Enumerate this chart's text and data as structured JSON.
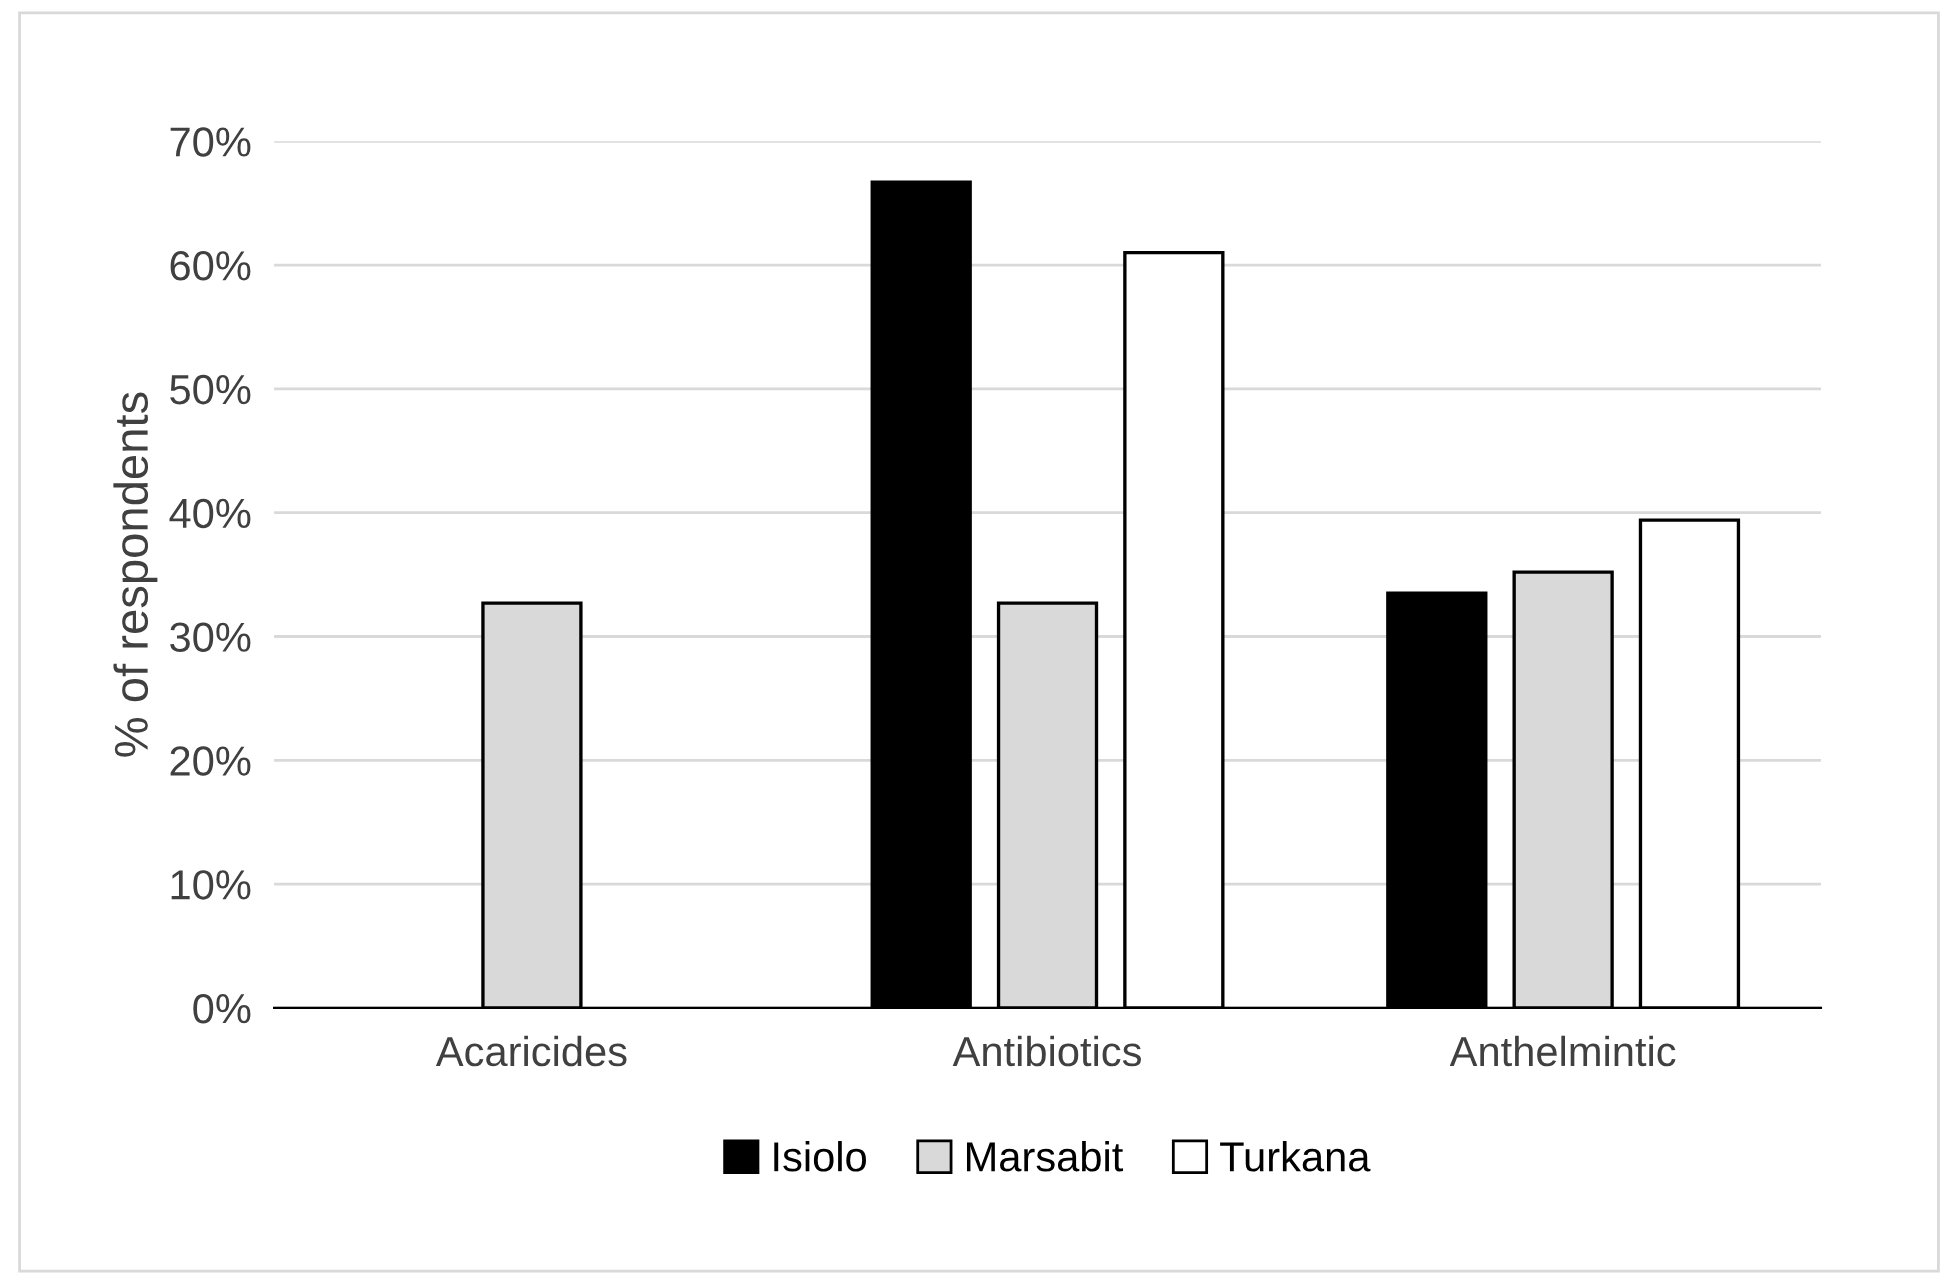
{
  "chart_data": {
    "type": "bar",
    "ylabel": "% of respondents",
    "categories": [
      "Acaricides",
      "Antibiotics",
      "Anthelmintic"
    ],
    "series": [
      {
        "name": "Isiolo",
        "color": "#000000",
        "values": [
          0,
          66.7,
          33.5
        ]
      },
      {
        "name": "Marsabit",
        "color": "#d9d9d9",
        "values": [
          32.7,
          32.7,
          35.2
        ]
      },
      {
        "name": "Turkana",
        "color": "#ffffff",
        "values": [
          0,
          61,
          39.4
        ]
      }
    ],
    "ylim": [
      0,
      70
    ],
    "yticks": [
      {
        "value": 0,
        "label": "0%"
      },
      {
        "value": 10,
        "label": "10%"
      },
      {
        "value": 20,
        "label": "20%"
      },
      {
        "value": 30,
        "label": "30%"
      },
      {
        "value": 40,
        "label": "40%"
      },
      {
        "value": 50,
        "label": "50%"
      },
      {
        "value": 60,
        "label": "60%"
      },
      {
        "value": 70,
        "label": "70%"
      }
    ],
    "grid": "y",
    "legend": "bottom"
  }
}
